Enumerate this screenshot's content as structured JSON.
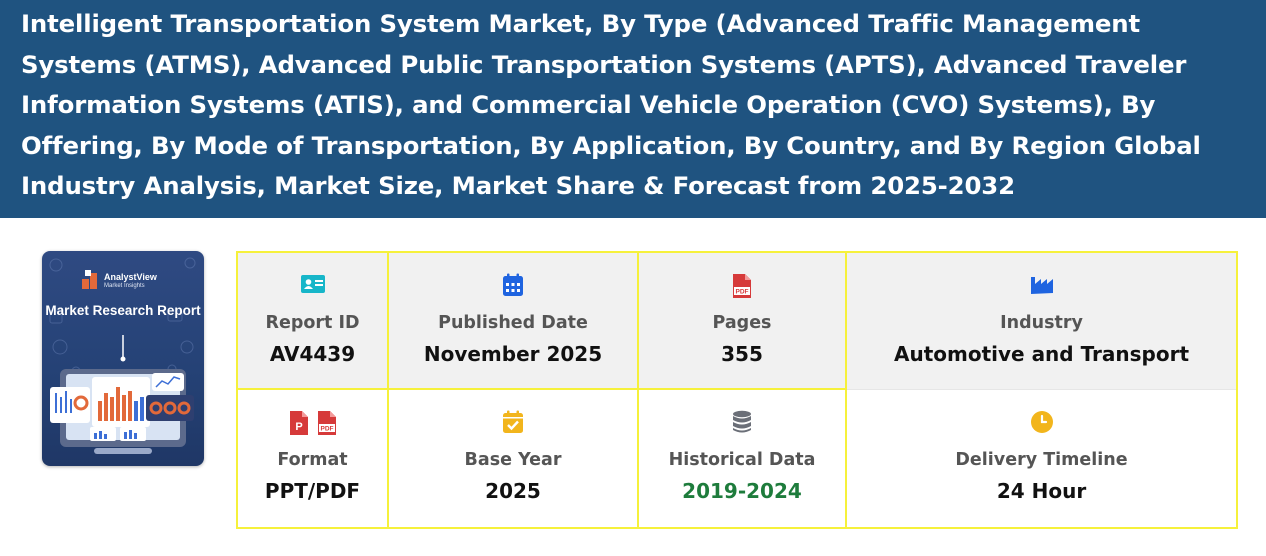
{
  "page": {
    "title": "Intelligent Transportation System Market, By Type (Advanced Traffic Management Systems (ATMS), Advanced Public Transportation Systems (APTS), Advanced Traveler Information Systems (ATIS), and Commercial Vehicle Operation (CVO) Systems), By Offering, By Mode of Transportation, By Application, By Country, and By Region Global Industry Analysis, Market Size, Market Share & Forecast from 2025-2032"
  },
  "cover": {
    "brand": "AnalystView",
    "brand_sub": "Market Insights",
    "report_title": "Market Research Report"
  },
  "details": [
    {
      "label": "Report ID",
      "value": "AV4439",
      "icon": "id-card-icon",
      "icon_color": "#17b6c9"
    },
    {
      "label": "Published Date",
      "value": "November 2025",
      "icon": "calendar-icon",
      "icon_color": "#1f64e0"
    },
    {
      "label": "Pages",
      "value": "355",
      "icon": "pdf-file-icon",
      "icon_color": "#d63a3a"
    },
    {
      "label": "Industry",
      "value": "Automotive and Transport",
      "icon": "factory-icon",
      "icon_color": "#1f64e0"
    },
    {
      "label": "Format",
      "value": "PPT/PDF",
      "icon": "ppt-pdf-icons",
      "icon_color": "#d63a3a"
    },
    {
      "label": "Base Year",
      "value": "2025",
      "icon": "calendar-check-icon",
      "icon_color": "#f2b51c"
    },
    {
      "label": "Historical Data",
      "value": "2019-2024",
      "icon": "database-icon",
      "icon_color": "#6b6f78",
      "value_color": "#1e7c3c"
    },
    {
      "label": "Delivery Timeline",
      "value": "24 Hour",
      "icon": "clock-icon",
      "icon_color": "#f2b51c"
    }
  ]
}
